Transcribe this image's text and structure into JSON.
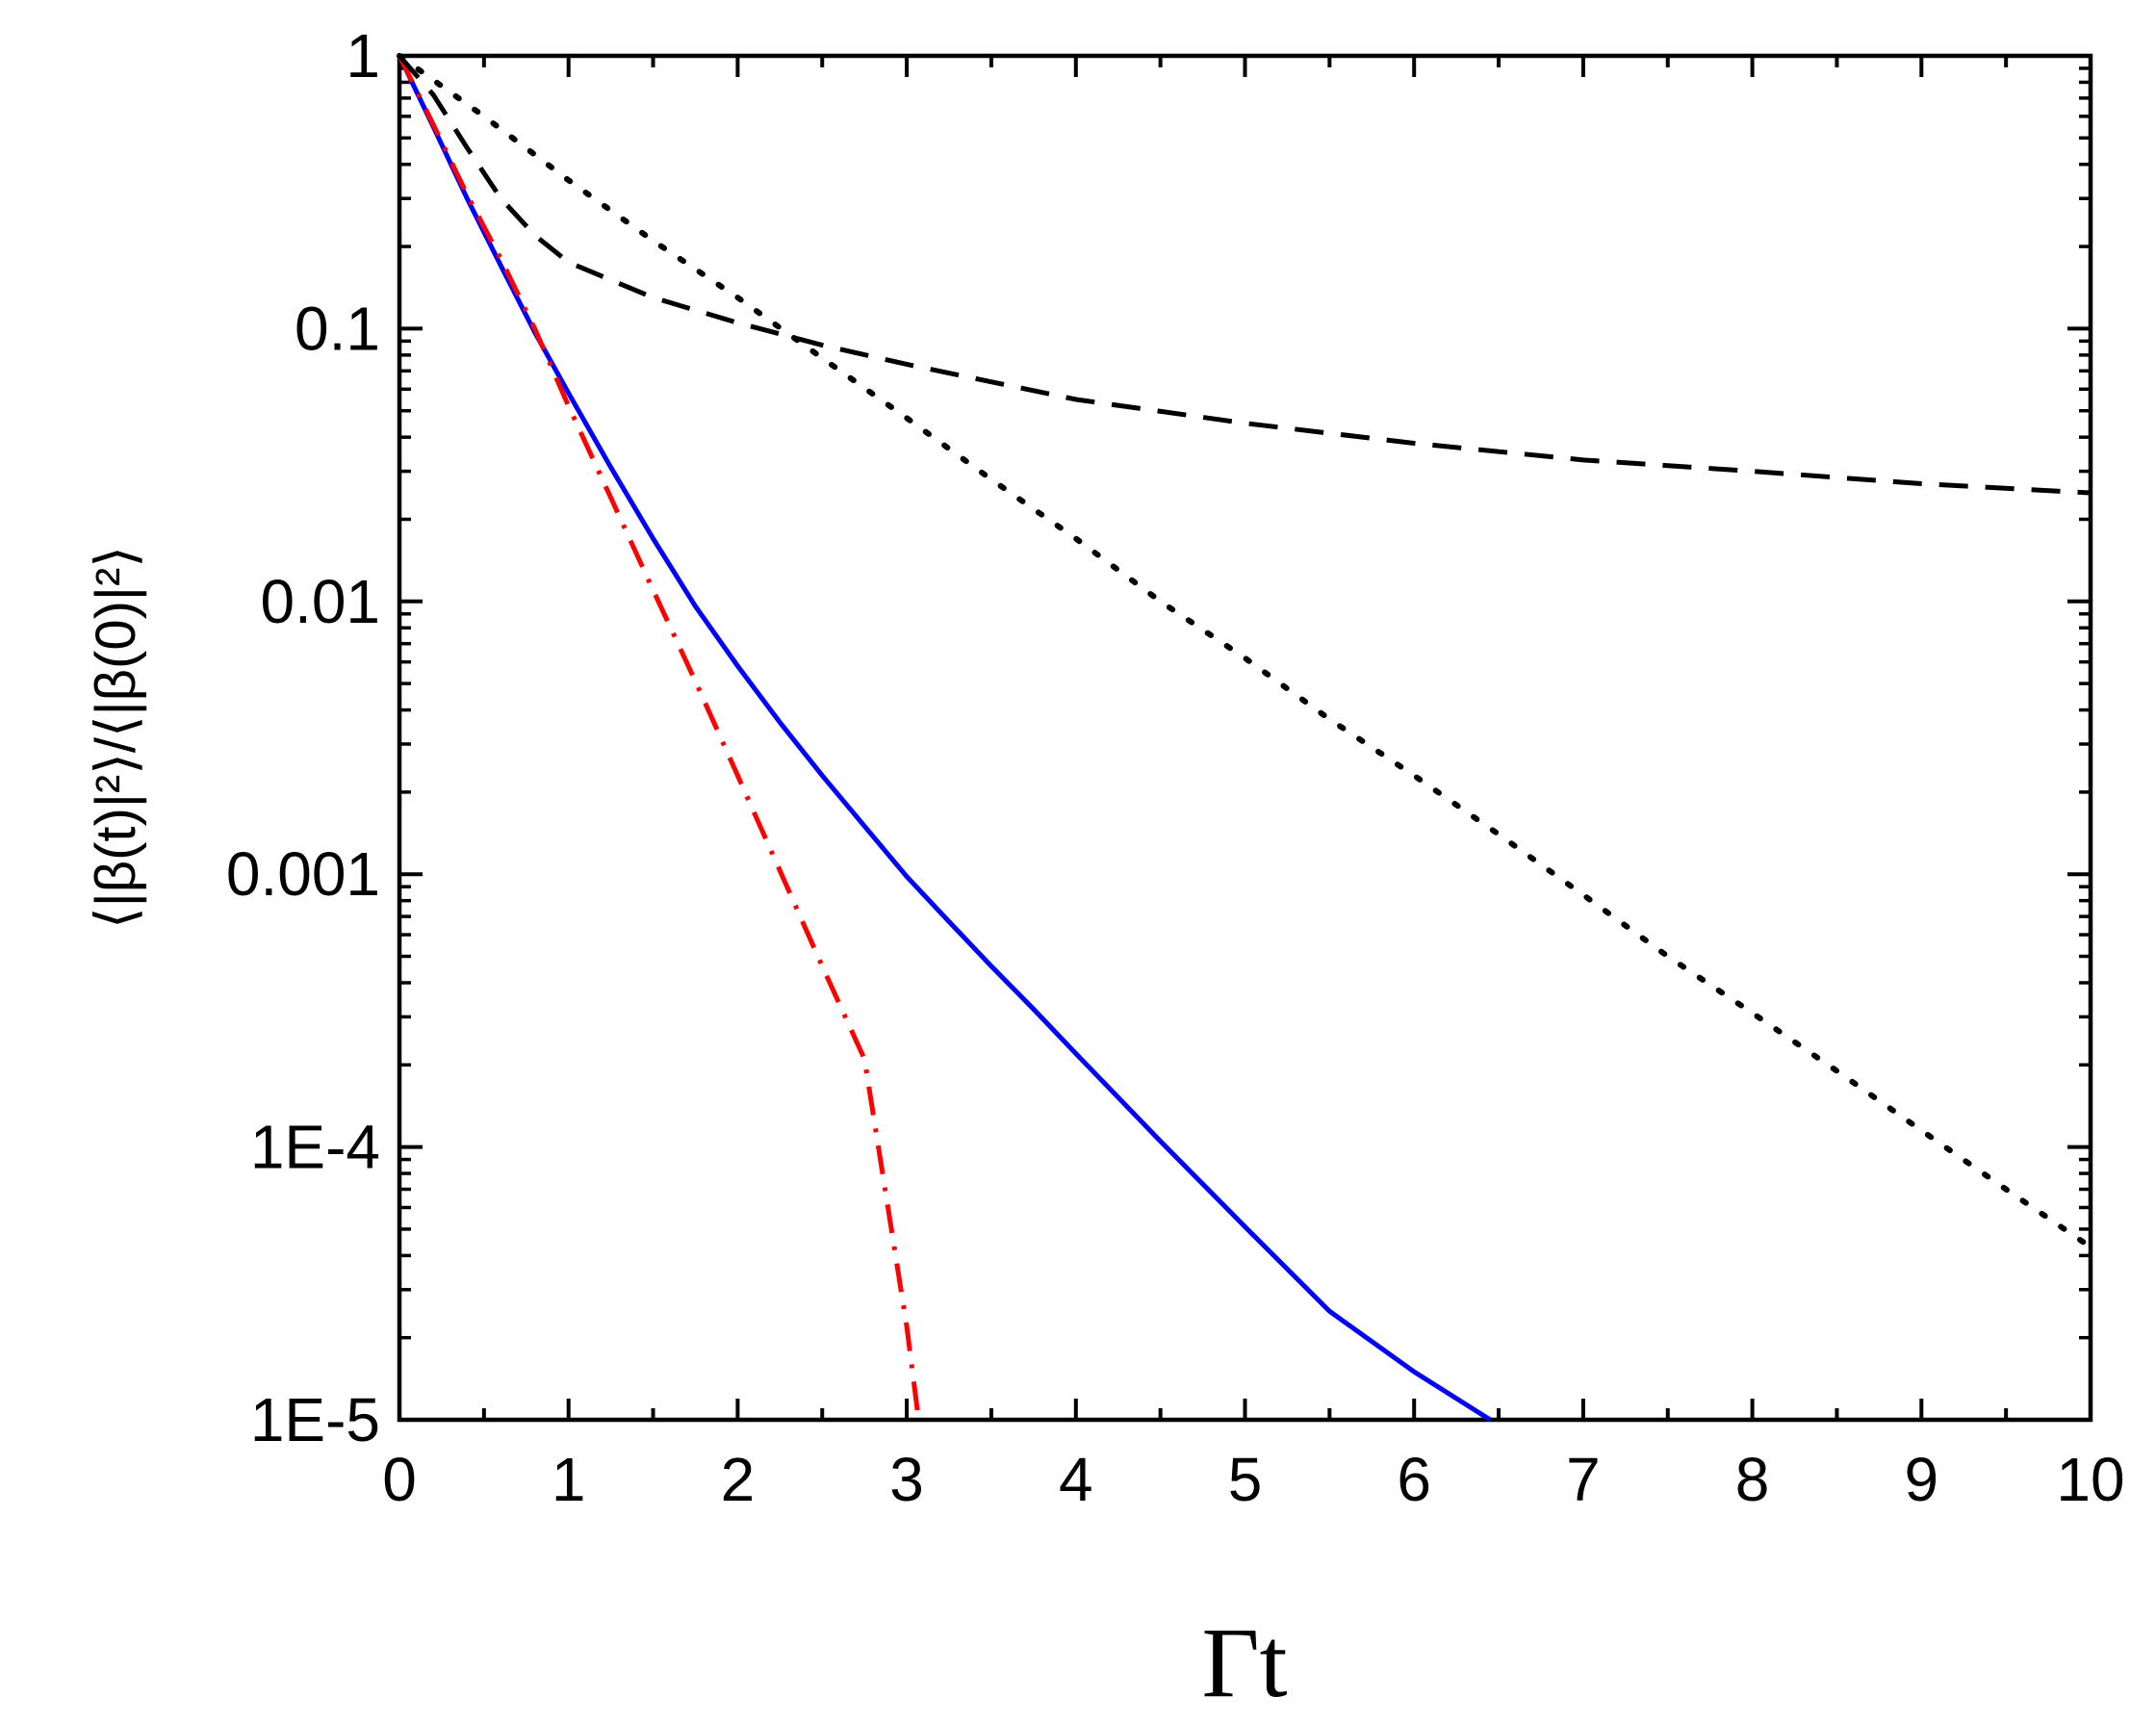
{
  "chart_data": {
    "type": "line",
    "title": "",
    "xlabel": "Γt",
    "ylabel": "⟨|β(t)|²⟩/⟨|β(0)|²⟩",
    "xlim": [
      0,
      10
    ],
    "ylim": [
      1e-05,
      1
    ],
    "y_scale": "log",
    "grid": false,
    "legend": "none",
    "x_ticks": [
      "0",
      "1",
      "2",
      "3",
      "4",
      "5",
      "6",
      "7",
      "8",
      "9",
      "10"
    ],
    "y_ticks": [
      "1E-5",
      "1E-4",
      "0.001",
      "0.01",
      "0.1",
      "1"
    ],
    "series": [
      {
        "style": "solid",
        "color": "#0000ff",
        "x": [
          0,
          0.2,
          0.4,
          0.6,
          0.8,
          1.0,
          1.25,
          1.5,
          1.75,
          2.0,
          2.25,
          2.5,
          2.75,
          3.0,
          3.25,
          3.5,
          3.75,
          4.0,
          4.5,
          5.0,
          5.5,
          6.0,
          6.45
        ],
        "y": [
          1,
          0.55,
          0.3,
          0.17,
          0.097,
          0.058,
          0.031,
          0.017,
          0.0096,
          0.0058,
          0.0036,
          0.0023,
          0.0015,
          0.00098,
          0.00067,
          0.00046,
          0.00032,
          0.00022,
          0.000105,
          5.1e-05,
          2.5e-05,
          1.5e-05,
          1e-05
        ]
      },
      {
        "style": "dashdot",
        "color": "#ff0000",
        "x": [
          0,
          0.2,
          0.4,
          0.6,
          0.8,
          1.0,
          1.25,
          1.5,
          1.75,
          2.0,
          2.25,
          2.5,
          2.75,
          3.0,
          3.07
        ],
        "y": [
          1,
          0.56,
          0.31,
          0.18,
          0.1,
          0.052,
          0.024,
          0.011,
          0.0051,
          0.0023,
          0.00103,
          0.00046,
          0.00021,
          2.2e-05,
          1e-05
        ]
      },
      {
        "style": "dashed",
        "color": "#000000",
        "x": [
          0,
          0.2,
          0.4,
          0.6,
          0.8,
          1.0,
          1.5,
          2.0,
          2.5,
          3.0,
          4.0,
          5.0,
          6.0,
          7.0,
          8.0,
          9.0,
          10.0
        ],
        "y": [
          1,
          0.72,
          0.46,
          0.3,
          0.22,
          0.175,
          0.13,
          0.105,
          0.087,
          0.074,
          0.055,
          0.045,
          0.038,
          0.033,
          0.03,
          0.027,
          0.025
        ]
      },
      {
        "style": "dotted",
        "color": "#000000",
        "x": [
          0,
          0.5,
          1,
          1.5,
          2,
          2.5,
          3,
          3.5,
          4,
          4.5,
          5,
          5.5,
          6,
          6.5,
          7,
          7.5,
          8,
          8.5,
          9,
          9.5,
          10
        ],
        "y": [
          1,
          0.6,
          0.35,
          0.21,
          0.13,
          0.078,
          0.047,
          0.028,
          0.017,
          0.01,
          0.0062,
          0.0037,
          0.0023,
          0.0014,
          0.00084,
          0.0005,
          0.00031,
          0.00019,
          0.000115,
          7e-05,
          4.3e-05
        ]
      }
    ]
  }
}
